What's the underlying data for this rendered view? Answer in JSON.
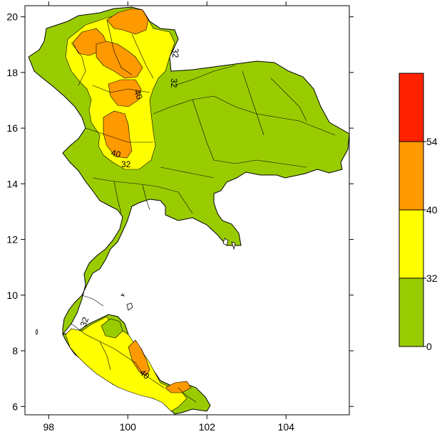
{
  "map": {
    "x_ticks": [
      {
        "value": 98,
        "label": "98"
      },
      {
        "value": 100,
        "label": "100"
      },
      {
        "value": 102,
        "label": "102"
      },
      {
        "value": 104,
        "label": "104"
      }
    ],
    "y_ticks": [
      {
        "value": 6,
        "label": "6"
      },
      {
        "value": 8,
        "label": "8"
      },
      {
        "value": 10,
        "label": "10"
      },
      {
        "value": 12,
        "label": "12"
      },
      {
        "value": 14,
        "label": "14"
      },
      {
        "value": 16,
        "label": "16"
      },
      {
        "value": 18,
        "label": "18"
      },
      {
        "value": 20,
        "label": "20"
      }
    ],
    "x_range": [
      97.4,
      105.6
    ],
    "y_range": [
      5.7,
      20.4
    ],
    "contour_labels": [
      "32",
      "32",
      "40",
      "40",
      "32",
      "32",
      "40"
    ]
  },
  "legend": {
    "bins": [
      {
        "from": 0,
        "to": 32,
        "color": "#99cc00"
      },
      {
        "from": 32,
        "to": 40,
        "color": "#ffff00"
      },
      {
        "from": 40,
        "to": 54,
        "color": "#ff9900"
      },
      {
        "from": 54,
        "to": null,
        "color": "#ff2200"
      }
    ],
    "labels": [
      "54",
      "40",
      "32",
      "0"
    ]
  },
  "colors": {
    "green": "#99cc00",
    "yellow": "#ffff00",
    "orange": "#ff9900",
    "red": "#ff2200"
  }
}
